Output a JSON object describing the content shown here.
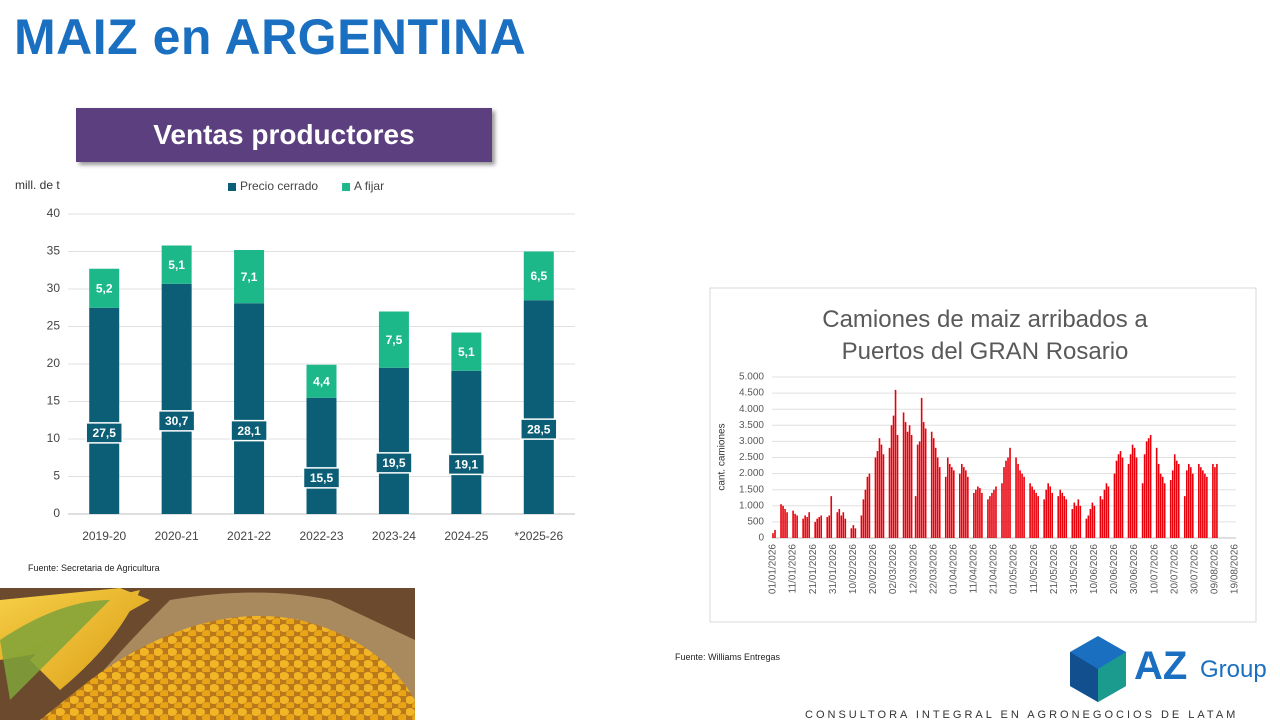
{
  "header": {
    "title": "MAIZ en ARGENTINA"
  },
  "logo": {
    "brand": "AZ",
    "suffix": "Group",
    "tagline": "CONSULTORA INTEGRAL EN AGRONEGOCIOS DE LATAM"
  },
  "chart_data": [
    {
      "type": "bar",
      "stacked": true,
      "title": "Ventas productores",
      "y_label": "mill. de t",
      "source": "Fuente: Secretaria de Agricultura",
      "categories": [
        "2019-20",
        "2020-21",
        "2021-22",
        "2022-23",
        "2023-24",
        "2024-25",
        "*2025-26"
      ],
      "series": [
        {
          "name": "Precio cerrado",
          "color": "#0b5e75",
          "values": [
            27.5,
            30.7,
            28.1,
            15.5,
            19.5,
            19.1,
            28.5
          ],
          "value_labels": [
            "27,5",
            "30,7",
            "28,1",
            "15,5",
            "19,5",
            "19,1",
            "28,5"
          ]
        },
        {
          "name": "A fijar",
          "color": "#1db88a",
          "values": [
            5.2,
            5.1,
            7.1,
            4.4,
            7.5,
            5.1,
            6.5
          ],
          "value_labels": [
            "5,2",
            "5,1",
            "7,1",
            "4,4",
            "7,5",
            "5,1",
            "6,5"
          ]
        }
      ],
      "ylim": [
        0,
        40
      ],
      "yticks": [
        0,
        5,
        10,
        15,
        20,
        25,
        30,
        35,
        40
      ],
      "grid": true,
      "legend": "top"
    },
    {
      "type": "bar",
      "title": "Camiones de maiz arribados a Puertos del GRAN Rosario",
      "y_label": "cant. camiones",
      "source": "Fuente: Williams Entregas",
      "color": "#e8000b",
      "categories": [
        "01/01/2026",
        null,
        null,
        null,
        null,
        null,
        null,
        null,
        null,
        null,
        "11/01/2026",
        null,
        null,
        null,
        null,
        null,
        null,
        null,
        null,
        null,
        "21/01/2026",
        null,
        null,
        null,
        null,
        null,
        null,
        null,
        null,
        null,
        "31/01/2026",
        null,
        null,
        null,
        null,
        null,
        null,
        null,
        null,
        null,
        "10/02/2026",
        null,
        null,
        null,
        null,
        null,
        null,
        null,
        null,
        null,
        "20/02/2026",
        null,
        null,
        null,
        null,
        null,
        null,
        null,
        null,
        null,
        "02/03/2026",
        null,
        null,
        null,
        null,
        null,
        null,
        null,
        null,
        null,
        "12/03/2026",
        null,
        null,
        null,
        null,
        null,
        null,
        null,
        null,
        null,
        "22/03/2026",
        null,
        null,
        null,
        null,
        null,
        null,
        null,
        null,
        null,
        "01/04/2026",
        null,
        null,
        null,
        null,
        null,
        null,
        null,
        null,
        null,
        "11/04/2026",
        null,
        null,
        null,
        null,
        null,
        null,
        null,
        null,
        null,
        "21/04/2026",
        null,
        null,
        null,
        null,
        null,
        null,
        null,
        null,
        null,
        "01/05/2026",
        null,
        null,
        null,
        null,
        null,
        null,
        null,
        null,
        null,
        "11/05/2026",
        null,
        null,
        null,
        null,
        null,
        null,
        null,
        null,
        null,
        "21/05/2026",
        null,
        null,
        null,
        null,
        null,
        null,
        null,
        null,
        null,
        "31/05/2026",
        null,
        null,
        null,
        null,
        null,
        null,
        null,
        null,
        null,
        "10/06/2026",
        null,
        null,
        null,
        null,
        null,
        null,
        null,
        null,
        null,
        "20/06/2026",
        null,
        null,
        null,
        null,
        null,
        null,
        null,
        null,
        null,
        "30/06/2026",
        null,
        null,
        null,
        null,
        null,
        null,
        null,
        null,
        null,
        "10/07/2026",
        null,
        null,
        null,
        null,
        null,
        null,
        null,
        null,
        null,
        "20/07/2026",
        null,
        null,
        null,
        null,
        null,
        null,
        null,
        null,
        null,
        "30/07/2026",
        null,
        null,
        null,
        null,
        null,
        null,
        null,
        null,
        null,
        "09/08/2026",
        null,
        null,
        null,
        null,
        null,
        null,
        null,
        null,
        null,
        "19/08/2026"
      ],
      "values": [
        150,
        250,
        0,
        0,
        1050,
        1000,
        900,
        800,
        0,
        0,
        850,
        750,
        700,
        0,
        0,
        600,
        700,
        650,
        800,
        0,
        0,
        500,
        600,
        650,
        700,
        0,
        0,
        650,
        700,
        1300,
        0,
        0,
        800,
        900,
        700,
        800,
        600,
        0,
        0,
        300,
        400,
        300,
        0,
        0,
        700,
        1200,
        1500,
        1900,
        2000,
        0,
        0,
        2500,
        2700,
        3100,
        2900,
        2600,
        0,
        0,
        2800,
        3500,
        3800,
        4600,
        3200,
        0,
        0,
        3900,
        3600,
        3300,
        3500,
        3200,
        0,
        1300,
        2900,
        3000,
        4350,
        3600,
        3400,
        0,
        0,
        3300,
        3100,
        2800,
        2500,
        2200,
        0,
        0,
        1900,
        2500,
        2300,
        2200,
        2100,
        0,
        0,
        2000,
        2300,
        2200,
        2100,
        1900,
        0,
        0,
        1400,
        1500,
        1600,
        1550,
        1400,
        0,
        0,
        1200,
        1300,
        1400,
        1500,
        1600,
        0,
        0,
        1700,
        2200,
        2400,
        2500,
        2800,
        0,
        0,
        2500,
        2300,
        2100,
        2000,
        1900,
        0,
        0,
        1700,
        1600,
        1500,
        1400,
        1300,
        0,
        0,
        1200,
        1500,
        1700,
        1600,
        1400,
        0,
        0,
        1300,
        1500,
        1400,
        1300,
        1200,
        0,
        0,
        900,
        1100,
        1000,
        1200,
        1000,
        0,
        0,
        600,
        700,
        900,
        1100,
        1000,
        0,
        0,
        1300,
        1200,
        1500,
        1700,
        1600,
        0,
        0,
        2000,
        2400,
        2600,
        2700,
        2500,
        0,
        0,
        2300,
        2600,
        2900,
        2800,
        2500,
        0,
        0,
        1700,
        2600,
        3000,
        3100,
        3200,
        0,
        0,
        2800,
        2300,
        2000,
        1900,
        1700,
        0,
        0,
        1800,
        2100,
        2600,
        2400,
        2300,
        0,
        0,
        1300,
        2100,
        2300,
        2200,
        2000,
        0,
        0,
        2300,
        2200,
        2100,
        2000,
        1900,
        0,
        0,
        2300,
        2200,
        2300,
        0,
        0,
        null,
        null,
        null,
        null,
        null,
        null,
        null
      ],
      "ylim": [
        0,
        5000
      ],
      "yticks": [
        0,
        500,
        {
          "value": 1000,
          "label": "1.000"
        },
        {
          "value": 1500,
          "label": "1.500"
        },
        {
          "value": 2000,
          "label": "2.000"
        },
        {
          "value": 2500,
          "label": "2.500"
        },
        {
          "value": 3000,
          "label": "3.000"
        },
        {
          "value": 3500,
          "label": "3.500"
        },
        {
          "value": 4000,
          "label": "4.000"
        },
        {
          "value": 4500,
          "label": "4.500"
        },
        {
          "value": 5000,
          "label": "5.000"
        }
      ],
      "grid": true
    }
  ]
}
